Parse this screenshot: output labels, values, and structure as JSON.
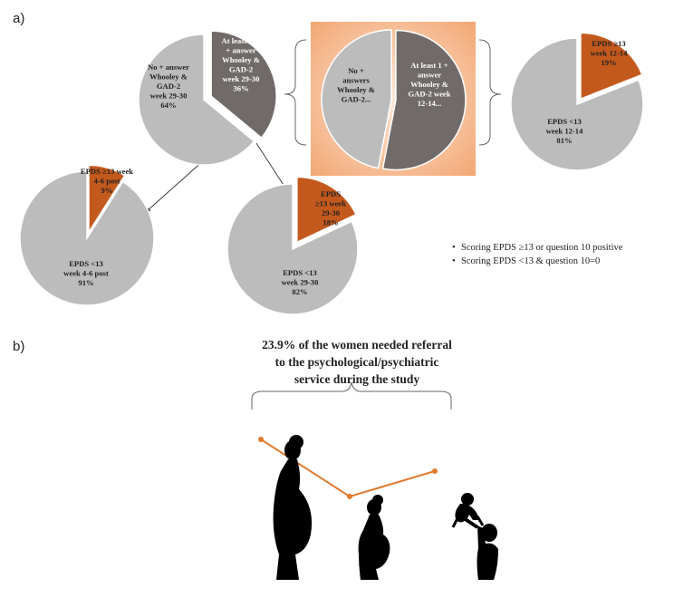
{
  "panel_a_label": "a)",
  "panel_b_label": "b)",
  "colors": {
    "grey": "#bcbcbc",
    "dark_grey": "#706a69",
    "orange": "#c4591d",
    "highlight": "#f2a774",
    "text_dark": "#222222",
    "text_light": "#ffffff"
  },
  "chart_data": [
    {
      "type": "pie",
      "slices": [
        {
          "label": [
            "No + answer",
            "Whooley &",
            "GAD-2",
            "week 29-30",
            "64%"
          ],
          "value": 64
        },
        {
          "label": [
            "At least one",
            "+ answer",
            "Whooley &",
            "GAD-2",
            "week 29-30",
            "36%"
          ],
          "value": 36
        }
      ]
    },
    {
      "type": "pie",
      "slices": [
        {
          "label": [
            "No +",
            "answers",
            "Whooley &",
            "GAD-2..."
          ],
          "value": 47
        },
        {
          "label": [
            "At least 1 +",
            "answer",
            "Whooley &",
            "GAD-2 week",
            "12-14..."
          ],
          "value": 53
        }
      ]
    },
    {
      "type": "pie",
      "slices": [
        {
          "label": [
            "EPDS <13",
            "week 12-14",
            "81%"
          ],
          "value": 81
        },
        {
          "label": [
            "EPDS ≥13",
            "week 12-14",
            "19%"
          ],
          "value": 19
        }
      ]
    },
    {
      "type": "pie",
      "slices": [
        {
          "label": [
            "EPDS <13",
            "week 4-6 post",
            "91%"
          ],
          "value": 91
        },
        {
          "label": [
            "EPDS ≥13 week",
            "4-6 post",
            "9%"
          ],
          "value": 9
        }
      ]
    },
    {
      "type": "pie",
      "slices": [
        {
          "label": [
            "EPDS <13",
            "week 29-30",
            "82%"
          ],
          "value": 82
        },
        {
          "label": [
            "EPDS",
            "≥13 week",
            "29-30",
            "18%"
          ],
          "value": 18
        }
      ]
    }
  ],
  "legend_items": [
    "Scoring EPDS ≥13 or question 10 positive",
    "Scoring EPDS <13 & question 10=0"
  ],
  "headline_lines": [
    "23.9% of the women needed referral",
    "to the psychological/psychiatric",
    "service during the study"
  ],
  "silhouettes": [
    "pregnant-woman-icon",
    "pregnant-woman-icon",
    "mother-with-baby-icon"
  ]
}
